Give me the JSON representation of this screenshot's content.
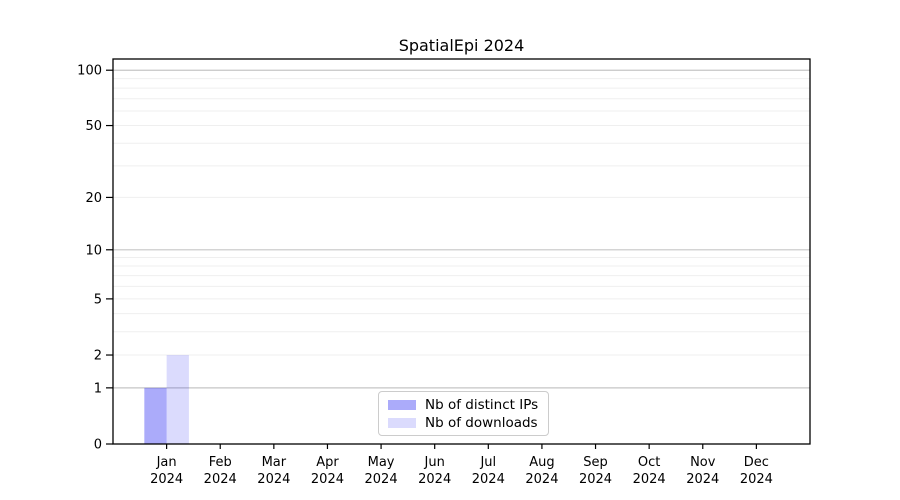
{
  "chart_data": {
    "type": "bar",
    "title": "SpatialEpi 2024",
    "categories": [
      "Jan",
      "Feb",
      "Mar",
      "Apr",
      "May",
      "Jun",
      "Jul",
      "Aug",
      "Sep",
      "Oct",
      "Nov",
      "Dec"
    ],
    "x_tick_year": "2024",
    "series": [
      {
        "name": "Nb of distinct IPs",
        "fill": "rgba(0,0,240,0.33)",
        "values": [
          1,
          0,
          0,
          0,
          0,
          0,
          0,
          0,
          0,
          0,
          0,
          0
        ]
      },
      {
        "name": "Nb of downloads",
        "fill": "rgba(0,0,240,0.14)",
        "values": [
          2,
          0,
          0,
          0,
          0,
          0,
          0,
          0,
          0,
          0,
          0,
          0
        ]
      }
    ],
    "yscale": "log1p",
    "ylim": [
      0,
      115
    ],
    "y_ticks": [
      0,
      1,
      2,
      5,
      10,
      20,
      50,
      100
    ],
    "grid": {
      "major_values": [
        1,
        10,
        100
      ],
      "minor_values": [
        2,
        3,
        4,
        5,
        6,
        7,
        8,
        9,
        20,
        30,
        40,
        50,
        60,
        70,
        80,
        90
      ],
      "major_color": "#c6c6c6",
      "minor_color": "#efefef"
    },
    "axis_color": "#000000",
    "legend_position": "lower center"
  }
}
